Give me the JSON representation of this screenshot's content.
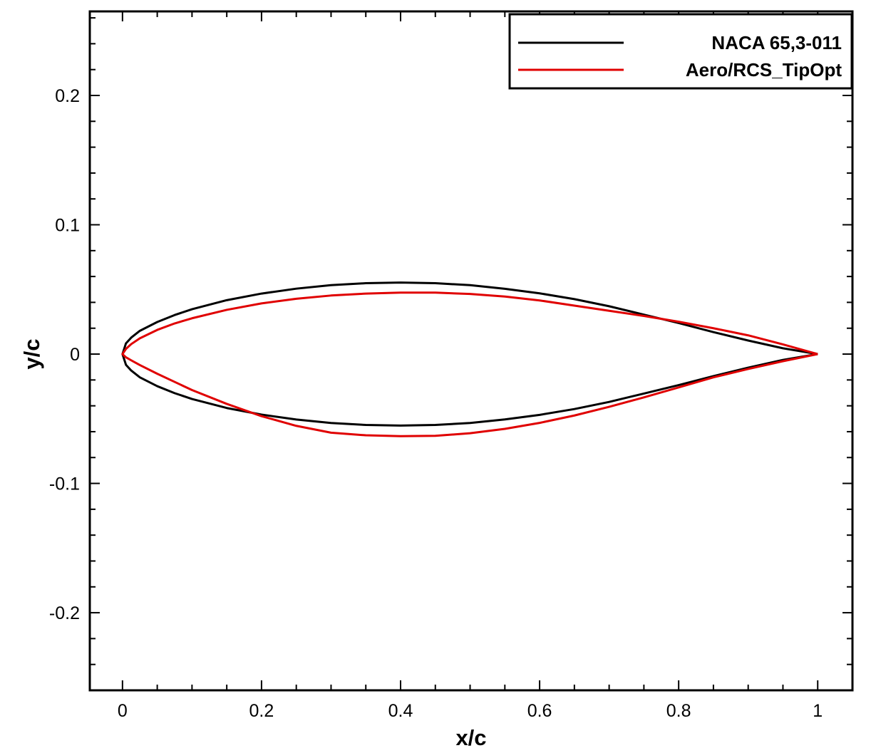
{
  "chart_data": {
    "type": "line",
    "xlabel": "x/c",
    "ylabel": "y/c",
    "xlim": [
      -0.047,
      1.05
    ],
    "ylim": [
      -0.26,
      0.265
    ],
    "grid": false,
    "legend_position": "top-right",
    "xticks": [
      {
        "value": 0,
        "label": "0"
      },
      {
        "value": 0.2,
        "label": "0.2"
      },
      {
        "value": 0.4,
        "label": "0.4"
      },
      {
        "value": 0.6,
        "label": "0.6"
      },
      {
        "value": 0.8,
        "label": "0.8"
      },
      {
        "value": 1,
        "label": "1"
      }
    ],
    "yticks": [
      {
        "value": 0.2,
        "label": "0.2"
      },
      {
        "value": 0.1,
        "label": "0.1"
      },
      {
        "value": 0,
        "label": "0"
      },
      {
        "value": -0.1,
        "label": "-0.1"
      },
      {
        "value": -0.2,
        "label": "-0.2"
      }
    ],
    "series": [
      {
        "name": "NACA 65,3-011",
        "color": "#000000",
        "x": [
          1.0,
          0.95,
          0.9,
          0.85,
          0.8,
          0.75,
          0.7,
          0.65,
          0.6,
          0.55,
          0.5,
          0.45,
          0.4,
          0.35,
          0.3,
          0.25,
          0.2,
          0.15,
          0.1,
          0.075,
          0.05,
          0.025,
          0.0125,
          0.005,
          0.0,
          0.005,
          0.0125,
          0.025,
          0.05,
          0.075,
          0.1,
          0.15,
          0.2,
          0.25,
          0.3,
          0.35,
          0.4,
          0.45,
          0.5,
          0.55,
          0.6,
          0.65,
          0.7,
          0.75,
          0.8,
          0.85,
          0.9,
          0.95,
          1.0
        ],
        "y": [
          0.0,
          0.0045,
          0.0105,
          0.017,
          0.024,
          0.0305,
          0.037,
          0.0425,
          0.047,
          0.0505,
          0.0533,
          0.0548,
          0.0553,
          0.0548,
          0.0533,
          0.0506,
          0.0468,
          0.0417,
          0.0347,
          0.0302,
          0.0248,
          0.018,
          0.0127,
          0.0083,
          0.0,
          -0.0083,
          -0.0127,
          -0.018,
          -0.0248,
          -0.0302,
          -0.0347,
          -0.0417,
          -0.0468,
          -0.0506,
          -0.0533,
          -0.0548,
          -0.0553,
          -0.0548,
          -0.0533,
          -0.0505,
          -0.047,
          -0.0425,
          -0.037,
          -0.0305,
          -0.024,
          -0.017,
          -0.0105,
          -0.0045,
          0.0
        ]
      },
      {
        "name": "Aero/RCS_TipOpt",
        "color": "#e00000",
        "x": [
          1.0,
          0.95,
          0.9,
          0.85,
          0.8,
          0.75,
          0.7,
          0.65,
          0.6,
          0.55,
          0.5,
          0.45,
          0.4,
          0.35,
          0.3,
          0.25,
          0.2,
          0.15,
          0.1,
          0.075,
          0.05,
          0.025,
          0.0125,
          0.005,
          0.0,
          0.005,
          0.0125,
          0.025,
          0.05,
          0.075,
          0.1,
          0.15,
          0.2,
          0.25,
          0.3,
          0.35,
          0.4,
          0.45,
          0.5,
          0.55,
          0.6,
          0.65,
          0.7,
          0.75,
          0.8,
          0.85,
          0.9,
          0.95,
          1.0
        ],
        "y": [
          0.0,
          0.0075,
          0.0145,
          0.02,
          0.025,
          0.0295,
          0.0335,
          0.0375,
          0.0415,
          0.0445,
          0.0465,
          0.0475,
          0.0475,
          0.0468,
          0.0453,
          0.0428,
          0.0392,
          0.0342,
          0.0277,
          0.0237,
          0.0187,
          0.0122,
          0.0077,
          0.004,
          0.0,
          -0.0025,
          -0.0048,
          -0.0085,
          -0.0152,
          -0.0215,
          -0.0278,
          -0.0385,
          -0.048,
          -0.0555,
          -0.0608,
          -0.0628,
          -0.0635,
          -0.0632,
          -0.0612,
          -0.0578,
          -0.0532,
          -0.0475,
          -0.0408,
          -0.0335,
          -0.0258,
          -0.018,
          -0.0115,
          -0.0055,
          0.0
        ]
      }
    ]
  }
}
